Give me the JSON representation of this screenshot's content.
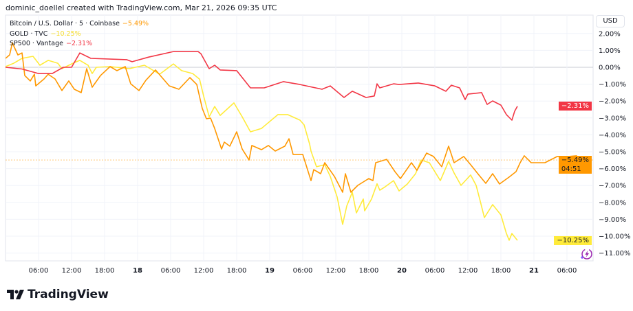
{
  "header": {
    "text": "dominic_doellel created with TradingView.com, Mar 21, 2026 09:35 UTC"
  },
  "currency_button": "USD",
  "brand": {
    "name": "TradingView",
    "logo_icon": "tradingview-logo-icon"
  },
  "chart_data": {
    "type": "line",
    "xlabel": "",
    "ylabel": "",
    "y_unit": "%",
    "ylim": [
      -11.5,
      2.2
    ],
    "grid": true,
    "legend": "top-left",
    "y_ticks": [
      "2.00%",
      "1.00%",
      "0.00%",
      "−1.00%",
      "−2.00%",
      "−3.00%",
      "−4.00%",
      "−5.00%",
      "−6.00%",
      "−7.00%",
      "−8.00%",
      "−9.00%",
      "−10.00%",
      "−11.00%"
    ],
    "y_tick_values": [
      2,
      1,
      0,
      -1,
      -2,
      -3,
      -4,
      -5,
      -6,
      -7,
      -8,
      -9,
      -10,
      -11
    ],
    "x_ticks": [
      {
        "label": "06:00",
        "t": "03-17 06:00",
        "bold": false
      },
      {
        "label": "12:00",
        "t": "03-17 12:00",
        "bold": false
      },
      {
        "label": "18:00",
        "t": "03-17 18:00",
        "bold": false
      },
      {
        "label": "18",
        "t": "03-18 00:00",
        "bold": true
      },
      {
        "label": "06:00",
        "t": "03-18 06:00",
        "bold": false
      },
      {
        "label": "12:00",
        "t": "03-18 12:00",
        "bold": false
      },
      {
        "label": "18:00",
        "t": "03-18 18:00",
        "bold": false
      },
      {
        "label": "19",
        "t": "03-19 00:00",
        "bold": true
      },
      {
        "label": "06:00",
        "t": "03-19 06:00",
        "bold": false
      },
      {
        "label": "12:00",
        "t": "03-19 12:00",
        "bold": false
      },
      {
        "label": "18:00",
        "t": "03-19 18:00",
        "bold": false
      },
      {
        "label": "20",
        "t": "03-20 00:00",
        "bold": true
      },
      {
        "label": "06:00",
        "t": "03-20 06:00",
        "bold": false
      },
      {
        "label": "12:00",
        "t": "03-20 12:00",
        "bold": false
      },
      {
        "label": "18:00",
        "t": "03-20 18:00",
        "bold": false
      },
      {
        "label": "21",
        "t": "03-21 00:00",
        "bold": true
      },
      {
        "label": "06:00",
        "t": "03-21 06:00",
        "bold": false
      }
    ],
    "series": [
      {
        "name": "Bitcoin / U.S. Dollar · 5 · Coinbase",
        "last": "−5.49%",
        "countdown": "04:51",
        "color": "#ff9800",
        "last_value": -5.49,
        "points": [
          [
            "03-17 00:00",
            0.53
          ],
          [
            "03-17 00:45",
            0.73
          ],
          [
            "03-17 01:15",
            1.46
          ],
          [
            "03-17 01:30",
            1.26
          ],
          [
            "03-17 02:15",
            0.73
          ],
          [
            "03-17 03:00",
            0.85
          ],
          [
            "03-17 03:30",
            -0.49
          ],
          [
            "03-17 04:30",
            -0.81
          ],
          [
            "03-17 05:15",
            -0.41
          ],
          [
            "03-17 05:30",
            -1.1
          ],
          [
            "03-17 07:00",
            -0.69
          ],
          [
            "03-17 07:45",
            -0.41
          ],
          [
            "03-17 09:00",
            -0.69
          ],
          [
            "03-17 10:15",
            -1.38
          ],
          [
            "03-17 11:30",
            -0.81
          ],
          [
            "03-17 12:30",
            -1.3
          ],
          [
            "03-17 13:45",
            -1.5
          ],
          [
            "03-17 14:45",
            -0.08
          ],
          [
            "03-17 15:45",
            -1.18
          ],
          [
            "03-17 17:15",
            -0.49
          ],
          [
            "03-17 19:00",
            0.04
          ],
          [
            "03-17 20:15",
            -0.2
          ],
          [
            "03-17 21:45",
            0.04
          ],
          [
            "03-17 22:45",
            -0.98
          ],
          [
            "03-18 00:15",
            -1.38
          ],
          [
            "03-18 01:30",
            -0.77
          ],
          [
            "03-18 03:15",
            -0.16
          ],
          [
            "03-18 05:45",
            -1.1
          ],
          [
            "03-18 07:30",
            -1.3
          ],
          [
            "03-18 09:30",
            -0.61
          ],
          [
            "03-18 10:45",
            -1.02
          ],
          [
            "03-18 11:45",
            -2.44
          ],
          [
            "03-18 12:30",
            -3.05
          ],
          [
            "03-18 13:15",
            -3.01
          ],
          [
            "03-18 14:00",
            -3.62
          ],
          [
            "03-18 15:15",
            -4.84
          ],
          [
            "03-18 15:45",
            -4.43
          ],
          [
            "03-18 16:45",
            -4.67
          ],
          [
            "03-18 18:00",
            -3.82
          ],
          [
            "03-18 19:00",
            -4.84
          ],
          [
            "03-18 20:15",
            -5.49
          ],
          [
            "03-18 20:45",
            -4.63
          ],
          [
            "03-18 22:30",
            -4.88
          ],
          [
            "03-18 23:45",
            -4.63
          ],
          [
            "03-19 01:00",
            -4.96
          ],
          [
            "03-19 02:45",
            -4.67
          ],
          [
            "03-19 03:30",
            -4.23
          ],
          [
            "03-19 04:15",
            -5.16
          ],
          [
            "03-19 06:00",
            -5.16
          ],
          [
            "03-19 07:30",
            -6.71
          ],
          [
            "03-19 08:00",
            -6.06
          ],
          [
            "03-19 09:15",
            -6.3
          ],
          [
            "03-19 10:00",
            -5.65
          ],
          [
            "03-19 11:45",
            -6.46
          ],
          [
            "03-19 13:15",
            -7.4
          ],
          [
            "03-19 13:45",
            -6.3
          ],
          [
            "03-19 14:45",
            -7.4
          ],
          [
            "03-19 16:00",
            -6.99
          ],
          [
            "03-19 18:00",
            -6.59
          ],
          [
            "03-19 18:45",
            -6.71
          ],
          [
            "03-19 19:15",
            -5.65
          ],
          [
            "03-19 21:15",
            -5.45
          ],
          [
            "03-19 22:45",
            -6.18
          ],
          [
            "03-19 23:45",
            -6.59
          ],
          [
            "03-20 01:45",
            -5.65
          ],
          [
            "03-20 02:45",
            -6.1
          ],
          [
            "03-20 04:30",
            -5.08
          ],
          [
            "03-20 05:45",
            -5.28
          ],
          [
            "03-20 07:15",
            -5.89
          ],
          [
            "03-20 08:30",
            -4.67
          ],
          [
            "03-20 09:30",
            -5.65
          ],
          [
            "03-20 11:15",
            -5.28
          ],
          [
            "03-20 12:30",
            -5.77
          ],
          [
            "03-20 14:00",
            -6.38
          ],
          [
            "03-20 15:15",
            -6.87
          ],
          [
            "03-20 16:30",
            -6.3
          ],
          [
            "03-20 17:45",
            -6.91
          ],
          [
            "03-20 19:30",
            -6.5
          ],
          [
            "03-20 20:45",
            -6.18
          ],
          [
            "03-20 21:30",
            -5.65
          ],
          [
            "03-20 22:15",
            -5.24
          ],
          [
            "03-20 23:30",
            -5.65
          ],
          [
            "03-21 02:00",
            -5.65
          ],
          [
            "03-21 04:15",
            -5.28
          ],
          [
            "03-21 06:15",
            -5.28
          ],
          [
            "03-21 07:45",
            -5.24
          ],
          [
            "03-21 08:45",
            -5.57
          ],
          [
            "03-21 09:45",
            -5.49
          ]
        ]
      },
      {
        "name": "GOLD · TVC",
        "last": "−10.25%",
        "color": "#ffeb3b",
        "label_text_color": "#131722",
        "last_value": -10.25,
        "points": [
          [
            "03-17 00:00",
            0.04
          ],
          [
            "03-17 01:30",
            0.24
          ],
          [
            "03-17 03:00",
            0.53
          ],
          [
            "03-17 05:00",
            0.65
          ],
          [
            "03-17 06:15",
            0.12
          ],
          [
            "03-17 07:45",
            0.41
          ],
          [
            "03-17 09:30",
            0.24
          ],
          [
            "03-17 10:15",
            -0.08
          ],
          [
            "03-17 12:15",
            0.24
          ],
          [
            "03-17 13:30",
            0.41
          ],
          [
            "03-17 15:00",
            0.12
          ],
          [
            "03-17 15:45",
            -0.37
          ],
          [
            "03-17 16:30",
            0.0
          ],
          [
            "03-17 19:00",
            0.04
          ],
          [
            "03-17 22:30",
            -0.08
          ],
          [
            "03-18 01:15",
            0.12
          ],
          [
            "03-18 04:00",
            -0.41
          ],
          [
            "03-18 06:30",
            0.2
          ],
          [
            "03-18 08:00",
            -0.2
          ],
          [
            "03-18 10:00",
            -0.37
          ],
          [
            "03-18 11:15",
            -0.7
          ],
          [
            "03-18 12:00",
            -1.71
          ],
          [
            "03-18 13:00",
            -2.93
          ],
          [
            "03-18 14:00",
            -2.32
          ],
          [
            "03-18 15:00",
            -2.85
          ],
          [
            "03-18 17:30",
            -2.11
          ],
          [
            "03-18 19:00",
            -2.93
          ],
          [
            "03-18 20:30",
            -3.82
          ],
          [
            "03-18 22:30",
            -3.62
          ],
          [
            "03-19 01:30",
            -2.8
          ],
          [
            "03-19 03:15",
            -2.8
          ],
          [
            "03-19 05:30",
            -3.13
          ],
          [
            "03-19 06:15",
            -3.41
          ],
          [
            "03-19 07:15",
            -4.55
          ],
          [
            "03-19 07:30",
            -4.96
          ],
          [
            "03-19 08:30",
            -5.89
          ],
          [
            "03-19 10:00",
            -5.77
          ],
          [
            "03-19 11:00",
            -6.46
          ],
          [
            "03-19 12:15",
            -7.68
          ],
          [
            "03-19 13:15",
            -9.3
          ],
          [
            "03-19 14:00",
            -8.21
          ],
          [
            "03-19 15:00",
            -7.4
          ],
          [
            "03-19 15:45",
            -8.62
          ],
          [
            "03-19 17:00",
            -7.8
          ],
          [
            "03-19 17:15",
            -8.5
          ],
          [
            "03-19 18:30",
            -7.8
          ],
          [
            "03-19 19:30",
            -6.9
          ],
          [
            "03-19 20:00",
            -7.28
          ],
          [
            "03-19 21:00",
            -7.07
          ],
          [
            "03-19 22:30",
            -6.71
          ],
          [
            "03-19 23:30",
            -7.32
          ],
          [
            "03-20 01:00",
            -6.91
          ],
          [
            "03-20 02:30",
            -6.3
          ],
          [
            "03-20 03:30",
            -5.49
          ],
          [
            "03-20 05:00",
            -5.65
          ],
          [
            "03-20 07:00",
            -6.71
          ],
          [
            "03-20 08:30",
            -5.57
          ],
          [
            "03-20 09:30",
            -6.26
          ],
          [
            "03-20 10:45",
            -6.99
          ],
          [
            "03-20 12:30",
            -6.38
          ],
          [
            "03-20 13:30",
            -6.99
          ],
          [
            "03-20 14:15",
            -7.93
          ],
          [
            "03-20 15:00",
            -8.9
          ],
          [
            "03-20 16:30",
            -8.13
          ],
          [
            "03-20 18:00",
            -8.74
          ],
          [
            "03-20 19:00",
            -9.84
          ],
          [
            "03-20 19:30",
            -10.24
          ],
          [
            "03-20 20:00",
            -9.84
          ],
          [
            "03-20 21:00",
            -10.25
          ]
        ]
      },
      {
        "name": "SP500 · Vantage",
        "last": "−2.31%",
        "color": "#f23645",
        "last_value": -2.31,
        "points": [
          [
            "03-17 00:00",
            0.0
          ],
          [
            "03-17 03:00",
            -0.1
          ],
          [
            "03-17 06:00",
            -0.37
          ],
          [
            "03-17 08:30",
            -0.37
          ],
          [
            "03-17 10:30",
            0.0
          ],
          [
            "03-17 12:00",
            0.0
          ],
          [
            "03-17 13:30",
            0.85
          ],
          [
            "03-17 15:30",
            0.53
          ],
          [
            "03-17 22:00",
            0.45
          ],
          [
            "03-17 23:00",
            0.33
          ],
          [
            "03-18 02:00",
            0.6
          ],
          [
            "03-18 06:30",
            0.93
          ],
          [
            "03-18 11:00",
            0.93
          ],
          [
            "03-18 11:30",
            0.8
          ],
          [
            "03-18 13:00",
            -0.08
          ],
          [
            "03-18 14:00",
            0.12
          ],
          [
            "03-18 15:00",
            -0.16
          ],
          [
            "03-18 18:00",
            -0.2
          ],
          [
            "03-18 20:30",
            -1.22
          ],
          [
            "03-18 23:00",
            -1.22
          ],
          [
            "03-19 02:30",
            -0.85
          ],
          [
            "03-19 05:30",
            -1.02
          ],
          [
            "03-19 09:30",
            -1.3
          ],
          [
            "03-19 11:00",
            -1.1
          ],
          [
            "03-19 13:30",
            -1.79
          ],
          [
            "03-19 15:00",
            -1.42
          ],
          [
            "03-19 17:30",
            -1.79
          ],
          [
            "03-19 19:00",
            -1.7
          ],
          [
            "03-19 19:30",
            -0.98
          ],
          [
            "03-19 20:00",
            -1.22
          ],
          [
            "03-19 22:30",
            -0.98
          ],
          [
            "03-19 23:30",
            -1.02
          ],
          [
            "03-20 03:00",
            -0.93
          ],
          [
            "03-20 06:00",
            -1.1
          ],
          [
            "03-20 08:00",
            -1.42
          ],
          [
            "03-20 09:00",
            -1.06
          ],
          [
            "03-20 10:30",
            -1.22
          ],
          [
            "03-20 11:30",
            -1.91
          ],
          [
            "03-20 12:00",
            -1.59
          ],
          [
            "03-20 14:30",
            -1.5
          ],
          [
            "03-20 15:30",
            -2.2
          ],
          [
            "03-20 16:30",
            -1.99
          ],
          [
            "03-20 18:00",
            -2.24
          ],
          [
            "03-20 19:00",
            -2.8
          ],
          [
            "03-20 20:00",
            -3.13
          ],
          [
            "03-20 20:30",
            -2.6
          ],
          [
            "03-20 21:00",
            -2.31
          ]
        ]
      }
    ]
  }
}
